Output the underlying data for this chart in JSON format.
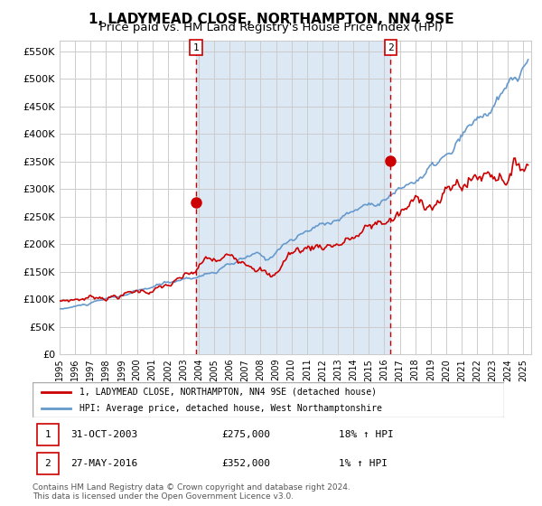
{
  "title": "1, LADYMEAD CLOSE, NORTHAMPTON, NN4 9SE",
  "subtitle": "Price paid vs. HM Land Registry's House Price Index (HPI)",
  "ylabel_ticks": [
    "£0",
    "£50K",
    "£100K",
    "£150K",
    "£200K",
    "£250K",
    "£300K",
    "£350K",
    "£400K",
    "£450K",
    "£500K",
    "£550K"
  ],
  "ytick_values": [
    0,
    50000,
    100000,
    150000,
    200000,
    250000,
    300000,
    350000,
    400000,
    450000,
    500000,
    550000
  ],
  "ylim": [
    0,
    570000
  ],
  "xlim_start": 1995.0,
  "xlim_end": 2025.5,
  "sale1_x": 2003.83,
  "sale1_y": 275000,
  "sale1_label": "1",
  "sale2_x": 2016.4,
  "sale2_y": 352000,
  "sale2_label": "2",
  "shading_start": 2003.83,
  "shading_end": 2016.4,
  "shading_color": "#dce9f5",
  "grid_color": "#cccccc",
  "background_color": "#ffffff",
  "red_line_color": "#cc0000",
  "blue_line_color": "#6699cc",
  "marker_color": "#cc0000",
  "dashed_line_color": "#cc0000",
  "legend1_label": "1, LADYMEAD CLOSE, NORTHAMPTON, NN4 9SE (detached house)",
  "legend2_label": "HPI: Average price, detached house, West Northamptonshire",
  "table_row1": [
    "1",
    "31-OCT-2003",
    "£275,000",
    "18% ↑ HPI"
  ],
  "table_row2": [
    "2",
    "27-MAY-2016",
    "£352,000",
    "1% ↑ HPI"
  ],
  "footer": "Contains HM Land Registry data © Crown copyright and database right 2024.\nThis data is licensed under the Open Government Licence v3.0.",
  "title_fontsize": 11,
  "subtitle_fontsize": 9.5
}
